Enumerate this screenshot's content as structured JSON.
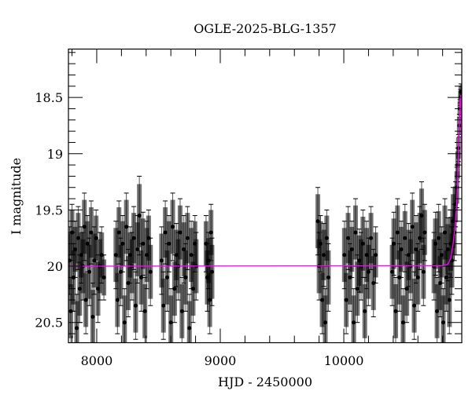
{
  "chart_data": {
    "type": "scatter",
    "title": "OGLE-2025-BLG-1357",
    "xlabel": "HJD - 2450000",
    "ylabel": "I magnitude",
    "xlim": [
      7771,
      10955
    ],
    "ylim": [
      20.68,
      18.07
    ],
    "y_inverted": true,
    "xticks": [
      8000,
      9000,
      10000
    ],
    "xtick_labels": [
      "8000",
      "9000",
      "10000"
    ],
    "x_minor_step": 200,
    "yticks": [
      18.5,
      19,
      19.5,
      20,
      20.5
    ],
    "ytick_labels": [
      "18.5",
      "19",
      "19.5",
      "20",
      "20.5"
    ],
    "y_minor_step": 0.1,
    "grid": false,
    "colors": {
      "points": "#000000",
      "errorbars": "#555555",
      "model": "#ff00ff"
    },
    "series": [
      {
        "kind": "points_with_errors",
        "points": [
          [
            7780,
            19.95,
            0.3
          ],
          [
            7790,
            20.4,
            0.3
          ],
          [
            7800,
            19.7,
            0.25
          ],
          [
            7812,
            20.1,
            0.3
          ],
          [
            7825,
            19.85,
            0.25
          ],
          [
            7838,
            20.55,
            0.3
          ],
          [
            7850,
            19.75,
            0.28
          ],
          [
            7862,
            20.2,
            0.3
          ],
          [
            7875,
            19.9,
            0.25
          ],
          [
            7888,
            20.0,
            0.3
          ],
          [
            7900,
            19.65,
            0.3
          ],
          [
            7912,
            20.3,
            0.3
          ],
          [
            7925,
            19.8,
            0.25
          ],
          [
            7940,
            20.05,
            0.3
          ],
          [
            7955,
            19.7,
            0.28
          ],
          [
            7968,
            20.45,
            0.3
          ],
          [
            7980,
            19.95,
            0.3
          ],
          [
            7995,
            19.75,
            0.25
          ],
          [
            8010,
            20.2,
            0.3
          ],
          [
            8025,
            20.0,
            0.3
          ],
          [
            8040,
            19.9,
            0.25
          ],
          [
            8058,
            20.1,
            0.2
          ],
          [
            8155,
            19.9,
            0.3
          ],
          [
            8168,
            20.3,
            0.3
          ],
          [
            8180,
            19.7,
            0.28
          ],
          [
            8195,
            20.05,
            0.3
          ],
          [
            8210,
            19.8,
            0.25
          ],
          [
            8225,
            20.5,
            0.3
          ],
          [
            8240,
            19.65,
            0.3
          ],
          [
            8255,
            20.15,
            0.3
          ],
          [
            8270,
            19.9,
            0.25
          ],
          [
            8285,
            20.0,
            0.3
          ],
          [
            8300,
            19.75,
            0.28
          ],
          [
            8315,
            20.35,
            0.3
          ],
          [
            8330,
            19.85,
            0.3
          ],
          [
            8345,
            19.55,
            0.35
          ],
          [
            8360,
            20.1,
            0.3
          ],
          [
            8375,
            19.8,
            0.28
          ],
          [
            8390,
            20.4,
            0.3
          ],
          [
            8405,
            19.9,
            0.3
          ],
          [
            8420,
            19.75,
            0.25
          ],
          [
            8435,
            20.05,
            0.3
          ],
          [
            8525,
            19.95,
            0.3
          ],
          [
            8540,
            20.35,
            0.3
          ],
          [
            8555,
            19.7,
            0.28
          ],
          [
            8570,
            20.1,
            0.3
          ],
          [
            8585,
            19.8,
            0.25
          ],
          [
            8600,
            20.5,
            0.3
          ],
          [
            8615,
            19.65,
            0.3
          ],
          [
            8630,
            20.2,
            0.3
          ],
          [
            8645,
            19.9,
            0.28
          ],
          [
            8660,
            20.0,
            0.3
          ],
          [
            8675,
            19.7,
            0.3
          ],
          [
            8690,
            20.4,
            0.3
          ],
          [
            8705,
            19.85,
            0.3
          ],
          [
            8720,
            20.1,
            0.3
          ],
          [
            8735,
            19.75,
            0.28
          ],
          [
            8750,
            20.55,
            0.3
          ],
          [
            8765,
            19.9,
            0.3
          ],
          [
            8780,
            20.2,
            0.3
          ],
          [
            8795,
            19.8,
            0.25
          ],
          [
            8805,
            20.0,
            0.3
          ],
          [
            8885,
            19.8,
            0.25
          ],
          [
            8895,
            20.1,
            0.3
          ],
          [
            8905,
            19.95,
            0.25
          ],
          [
            8915,
            20.3,
            0.3
          ],
          [
            8925,
            19.7,
            0.25
          ],
          [
            8933,
            20.05,
            0.3
          ],
          [
            9790,
            19.6,
            0.3
          ],
          [
            9800,
            20.0,
            0.3
          ],
          [
            9812,
            19.8,
            0.25
          ],
          [
            9825,
            20.3,
            0.3
          ],
          [
            9838,
            19.9,
            0.28
          ],
          [
            9850,
            20.5,
            0.3
          ],
          [
            9862,
            19.75,
            0.25
          ],
          [
            9875,
            20.1,
            0.3
          ],
          [
            10005,
            19.9,
            0.3
          ],
          [
            10020,
            20.3,
            0.3
          ],
          [
            10035,
            19.75,
            0.28
          ],
          [
            10050,
            20.1,
            0.3
          ],
          [
            10065,
            19.85,
            0.25
          ],
          [
            10080,
            20.5,
            0.3
          ],
          [
            10095,
            19.7,
            0.3
          ],
          [
            10110,
            20.2,
            0.3
          ],
          [
            10125,
            19.95,
            0.28
          ],
          [
            10140,
            20.0,
            0.3
          ],
          [
            10155,
            19.8,
            0.3
          ],
          [
            10170,
            20.4,
            0.3
          ],
          [
            10185,
            19.9,
            0.3
          ],
          [
            10200,
            20.05,
            0.3
          ],
          [
            10220,
            19.75,
            0.28
          ],
          [
            10240,
            20.15,
            0.3
          ],
          [
            10258,
            19.9,
            0.25
          ],
          [
            10392,
            20.05,
            0.3
          ],
          [
            10405,
            19.8,
            0.28
          ],
          [
            10420,
            20.4,
            0.3
          ],
          [
            10435,
            19.7,
            0.3
          ],
          [
            10450,
            20.1,
            0.3
          ],
          [
            10465,
            19.85,
            0.25
          ],
          [
            10480,
            20.5,
            0.3
          ],
          [
            10495,
            19.75,
            0.3
          ],
          [
            10510,
            20.2,
            0.3
          ],
          [
            10525,
            19.9,
            0.28
          ],
          [
            10540,
            20.0,
            0.3
          ],
          [
            10555,
            19.65,
            0.3
          ],
          [
            10570,
            20.35,
            0.3
          ],
          [
            10585,
            19.85,
            0.3
          ],
          [
            10600,
            20.1,
            0.3
          ],
          [
            10615,
            19.75,
            0.28
          ],
          [
            10630,
            19.55,
            0.3
          ],
          [
            10645,
            20.05,
            0.3
          ],
          [
            10655,
            19.7,
            0.25
          ],
          [
            10730,
            20.0,
            0.3
          ],
          [
            10742,
            19.8,
            0.28
          ],
          [
            10755,
            20.4,
            0.3
          ],
          [
            10768,
            19.75,
            0.3
          ],
          [
            10780,
            20.15,
            0.3
          ],
          [
            10792,
            19.9,
            0.25
          ],
          [
            10805,
            20.5,
            0.3
          ],
          [
            10818,
            19.7,
            0.3
          ],
          [
            10830,
            20.1,
            0.3
          ],
          [
            10842,
            19.85,
            0.28
          ],
          [
            10855,
            20.3,
            0.3
          ],
          [
            10866,
            19.8,
            0.3
          ],
          [
            10875,
            19.95,
            0.3
          ],
          [
            10885,
            19.6,
            0.3
          ],
          [
            10895,
            19.7,
            0.25
          ],
          [
            10905,
            19.45,
            0.2
          ],
          [
            10915,
            19.3,
            0.18
          ],
          [
            10922,
            19.1,
            0.15
          ],
          [
            10928,
            18.95,
            0.12
          ],
          [
            10935,
            18.75,
            0.1
          ],
          [
            10940,
            18.6,
            0.08
          ],
          [
            10945,
            18.5,
            0.07
          ],
          [
            10948,
            18.45,
            0.07
          ]
        ]
      },
      {
        "kind": "model_line",
        "points": [
          [
            7771,
            20.0
          ],
          [
            10800,
            19.995
          ],
          [
            10840,
            19.985
          ],
          [
            10866,
            19.93
          ],
          [
            10885,
            19.8
          ],
          [
            10900,
            19.65
          ],
          [
            10911,
            19.5
          ],
          [
            10920,
            19.3
          ],
          [
            10930,
            18.9
          ],
          [
            10938,
            18.65
          ],
          [
            10943,
            18.5
          ],
          [
            10948,
            18.48
          ],
          [
            10952,
            18.8
          ],
          [
            10955,
            19.05
          ]
        ]
      }
    ]
  }
}
